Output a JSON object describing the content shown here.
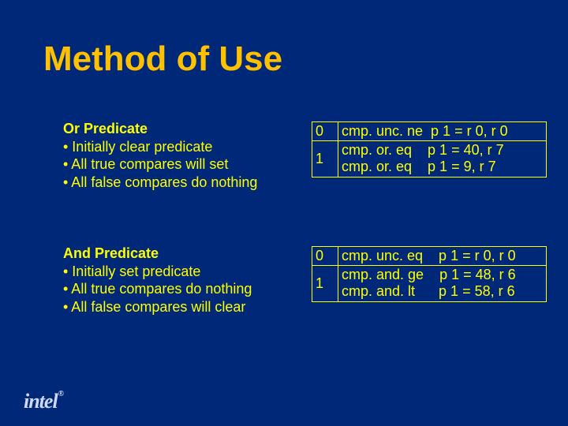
{
  "title": "Method of Use",
  "sections": [
    {
      "heading": "Or Predicate",
      "bullets": [
        "• Initially clear predicate",
        "• All true compares will set",
        "• All false compares do nothing"
      ]
    },
    {
      "heading": "And Predicate",
      "bullets": [
        "• Initially set predicate",
        "• All true compares do nothing",
        "• All false compares will clear"
      ]
    }
  ],
  "tables": [
    {
      "rows": [
        {
          "idx": "0",
          "lines": [
            "cmp. unc. ne  p 1 = r 0, r 0"
          ]
        },
        {
          "idx": "1",
          "lines": [
            "cmp. or. eq    p 1 = 40, r 7",
            "cmp. or. eq    p 1 = 9, r 7"
          ]
        }
      ]
    },
    {
      "rows": [
        {
          "idx": "0",
          "lines": [
            "cmp. unc. eq    p 1 = r 0, r 0"
          ]
        },
        {
          "idx": "1",
          "lines": [
            "cmp. and. ge    p 1 = 48, r 6",
            "cmp. and. lt      p 1 = 58, r 6"
          ]
        }
      ]
    }
  ],
  "logo": "intel",
  "reg": "®"
}
